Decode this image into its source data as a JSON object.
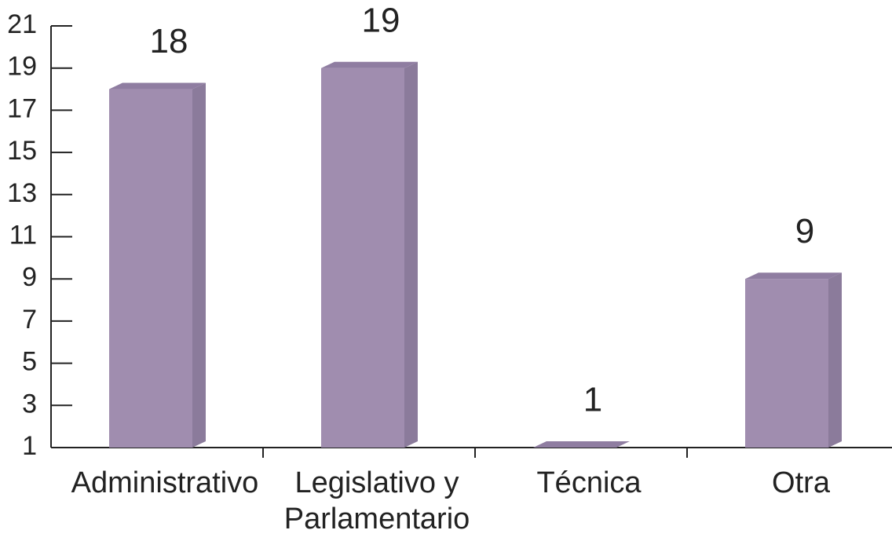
{
  "chart_data": {
    "type": "bar3d",
    "categories": [
      "Administrativo",
      "Legislativo y Parlamentario",
      "Técnica",
      "Otra"
    ],
    "values": [
      18,
      19,
      1,
      9
    ],
    "color": "#a08daf",
    "ylim": [
      1,
      21
    ],
    "yticks": [
      1,
      3,
      5,
      7,
      9,
      11,
      13,
      15,
      17,
      19,
      21
    ],
    "grid": false
  }
}
